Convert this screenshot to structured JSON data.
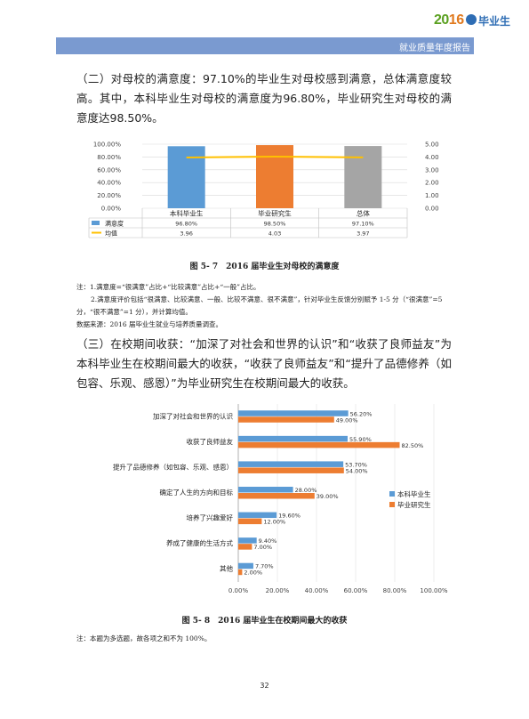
{
  "header": {
    "logo_year_prefix": "20",
    "logo_year_suffix": "16",
    "logo_text": "毕业生",
    "subtitle": "就业质量年度报告"
  },
  "section1": {
    "paragraph": "（二）对母校的满意度：97.10%的毕业生对母校感到满意，总体满意度较高。其中，本科毕业生对母校的满意度为96.80%，毕业研究生对母校的满意度达98.50%。"
  },
  "figure1": {
    "caption": "图 5- 7　2016 届毕业生对母校的满意度",
    "notes": [
      "注：1.满意度=“很满意”占比+“比较满意”占比+“一般”占比。",
      "2.满意度评价包括“很满意、比较满意、一般、比较不满意、很不满意”，针对毕业生反馈分别赋予 1-5 分（“很满意”=5 分，“很不满意”=1 分），并计算均值。",
      "数据来源：2016 届毕业生就业与培养质量调查。"
    ]
  },
  "section2": {
    "paragraph": "（三）在校期间收获：“加深了对社会和世界的认识”和“收获了良师益友”为本科毕业生在校期间最大的收获，“收获了良师益友”和“提升了品德修养（如包容、乐观、感恩）”为毕业研究生在校期间最大的收获。"
  },
  "figure2": {
    "caption": "图 5- 8　2016 届毕业生在校期间最大的收获",
    "note": "注：本题为多选题，故各项之和不为 100%。"
  },
  "page_number": "32",
  "chart_data": [
    {
      "type": "bar",
      "categories": [
        "本科毕业生",
        "毕业研究生",
        "总体"
      ],
      "series": [
        {
          "name": "满意度",
          "kind": "bar",
          "axis": "left",
          "values": [
            96.8,
            98.5,
            97.1
          ],
          "labels": [
            "96.80%",
            "98.50%",
            "97.10%"
          ]
        },
        {
          "name": "均值",
          "kind": "line",
          "axis": "right",
          "values": [
            3.96,
            4.03,
            3.97
          ],
          "labels": [
            "3.96",
            "4.03",
            "3.97"
          ]
        }
      ],
      "bar_colors": [
        "#5b9bd5",
        "#ed7d31",
        "#a5a5a5"
      ],
      "line_color": "#ffc000",
      "ylim_left": [
        0,
        100
      ],
      "yticks_left": [
        "0.00%",
        "20.00%",
        "40.00%",
        "60.00%",
        "80.00%",
        "100.00%"
      ],
      "ylim_right": [
        0,
        5
      ],
      "yticks_right": [
        "0.00",
        "1.00",
        "2.00",
        "3.00",
        "4.00",
        "5.00"
      ],
      "legend": "data-table"
    },
    {
      "type": "bar",
      "orientation": "horizontal",
      "categories": [
        "加深了对社会和世界的认识",
        "收获了良师益友",
        "提升了品德修养（如包容、乐观、感恩）",
        "确定了人生的方向和目标",
        "培养了兴趣爱好",
        "养成了健康的生活方式",
        "其他"
      ],
      "series": [
        {
          "name": "本科毕业生",
          "color": "#5b9bd5",
          "values": [
            56.2,
            55.9,
            53.7,
            28.0,
            19.6,
            9.4,
            7.7
          ],
          "labels": [
            "56.20%",
            "55.90%",
            "53.70%",
            "28.00%",
            "19.60%",
            "9.40%",
            "7.70%"
          ]
        },
        {
          "name": "毕业研究生",
          "color": "#ed7d31",
          "values": [
            49.0,
            82.5,
            54.0,
            39.0,
            12.0,
            7.0,
            2.0
          ],
          "labels": [
            "49.00%",
            "82.50%",
            "54.00%",
            "39.00%",
            "12.00%",
            "7.00%",
            "2.00%"
          ]
        }
      ],
      "xlim": [
        0,
        100
      ],
      "xticks": [
        "0.00%",
        "20.00%",
        "40.00%",
        "60.00%",
        "80.00%",
        "100.00%"
      ],
      "legend": "right"
    }
  ]
}
